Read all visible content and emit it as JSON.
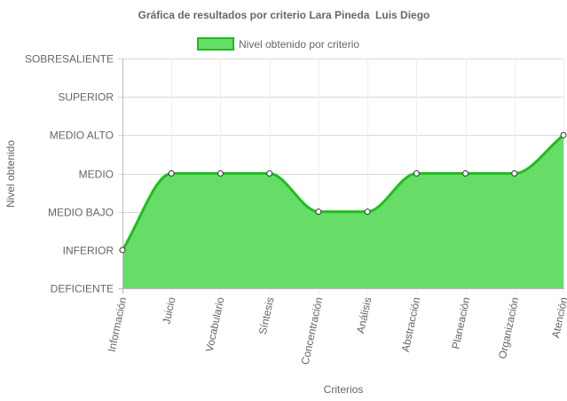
{
  "chart_data": {
    "type": "area",
    "title": "Gráfica de resultados por criterio Lara Pineda  Luis Diego",
    "xlabel": "Criterios",
    "ylabel": "Nivel obtenido",
    "categories": [
      "Información",
      "Juicio",
      "Vocabulario",
      "Síntesis",
      "Concentración",
      "Análisis",
      "Abstracción",
      "Planeación",
      "Organización",
      "Atención"
    ],
    "y_levels": [
      "DEFICIENTE",
      "INFERIOR",
      "MEDIO BAJO",
      "MEDIO",
      "MEDIO ALTO",
      "SUPERIOR",
      "SOBRESALIENTE"
    ],
    "ylim": [
      0,
      6
    ],
    "series": [
      {
        "name": "Nivel obtenido por criterio",
        "values": [
          1,
          3,
          3,
          3,
          2,
          2,
          3,
          3,
          3,
          4
        ],
        "fill_color": "#66dd66",
        "line_color": "#22bb22"
      }
    ],
    "legend_position": "top",
    "grid": true
  }
}
